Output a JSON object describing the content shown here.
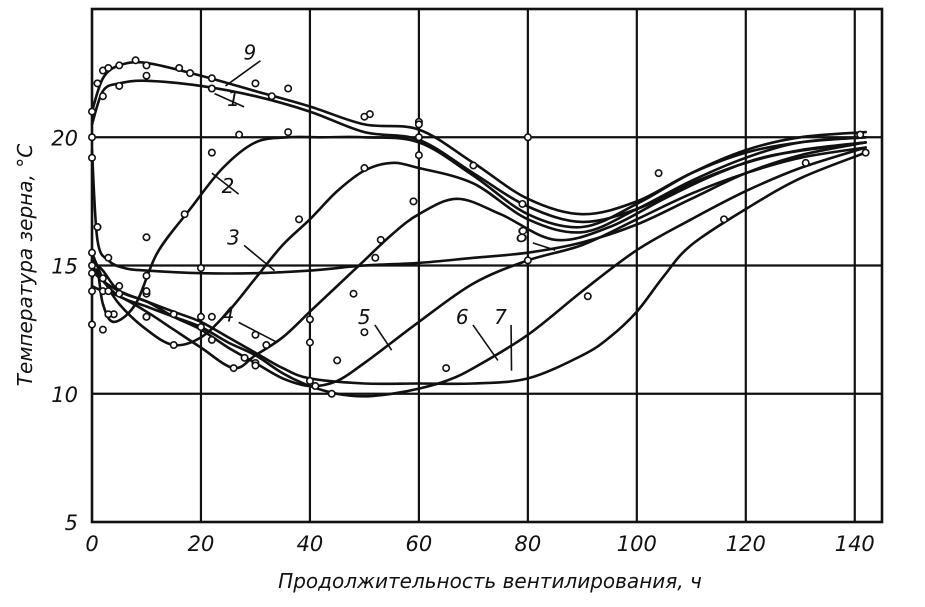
{
  "chart_data": {
    "type": "line",
    "title": "",
    "xlabel": "Продолжительность вентилирования, ч",
    "ylabel": "Температура зерна, °С",
    "xlim": [
      0,
      145
    ],
    "ylim": [
      5,
      25
    ],
    "xticks": [
      0,
      20,
      40,
      60,
      80,
      100,
      120,
      140
    ],
    "yticks": [
      5,
      10,
      15,
      20
    ],
    "grid": true,
    "series": [
      {
        "name": "1",
        "x": [
          0,
          2,
          5,
          10,
          20,
          30,
          40,
          50,
          60,
          70,
          80,
          90,
          100,
          110,
          120,
          130,
          142
        ],
        "y": [
          20.5,
          21.8,
          22.1,
          22.2,
          22.0,
          21.6,
          21.0,
          20.2,
          19.9,
          18.6,
          17.3,
          16.7,
          17.2,
          18.2,
          19.0,
          19.5,
          19.8
        ]
      },
      {
        "name": "2",
        "x": [
          0,
          1,
          2,
          4,
          8,
          12,
          18,
          24,
          30,
          36,
          42,
          50,
          60,
          70,
          80,
          90,
          100,
          110,
          120,
          130,
          142
        ],
        "y": [
          14.5,
          14.8,
          13.5,
          12.8,
          13.5,
          15.5,
          17.2,
          18.8,
          19.8,
          20.0,
          20.0,
          20.0,
          19.8,
          18.5,
          17.0,
          16.5,
          17.4,
          18.6,
          19.5,
          20.0,
          20.2
        ]
      },
      {
        "name": "3",
        "x": [
          0,
          2,
          5,
          10,
          15,
          20,
          25,
          30,
          35,
          40,
          45,
          50,
          55,
          60,
          70,
          80,
          90,
          100,
          110,
          120,
          130,
          142
        ],
        "y": [
          15.5,
          14.5,
          13.5,
          12.5,
          11.9,
          12.2,
          13.2,
          14.5,
          15.8,
          16.8,
          17.9,
          18.7,
          19.0,
          18.8,
          18.2,
          16.8,
          16.3,
          17.2,
          18.3,
          19.2,
          19.8,
          20.0
        ]
      },
      {
        "name": "4",
        "x": [
          0,
          2,
          5,
          10,
          15,
          20,
          26,
          30,
          35,
          40,
          45,
          50,
          55,
          60,
          67,
          75,
          85,
          95,
          105,
          115,
          125,
          142
        ],
        "y": [
          14.2,
          14.0,
          13.8,
          13.2,
          12.5,
          11.8,
          11.0,
          11.5,
          12.2,
          13.2,
          14.2,
          15.2,
          16.2,
          17.0,
          17.6,
          17.0,
          16.0,
          16.5,
          17.6,
          18.6,
          19.3,
          19.8
        ]
      },
      {
        "name": "5",
        "x": [
          0,
          2,
          5,
          10,
          15,
          20,
          25,
          30,
          35,
          40,
          45,
          50,
          55,
          60,
          70,
          80,
          90,
          100,
          110,
          120,
          130,
          142
        ],
        "y": [
          15.2,
          14.8,
          14.0,
          13.6,
          13.0,
          12.5,
          11.8,
          11.2,
          10.6,
          10.3,
          10.5,
          11.2,
          12.0,
          12.8,
          14.3,
          15.2,
          15.8,
          16.8,
          17.8,
          18.6,
          19.2,
          19.6
        ]
      },
      {
        "name": "6",
        "x": [
          0,
          2,
          5,
          10,
          15,
          20,
          25,
          30,
          35,
          40,
          45,
          50,
          55,
          60,
          65,
          70,
          80,
          90,
          100,
          110,
          120,
          130,
          142
        ],
        "y": [
          15.0,
          14.4,
          13.8,
          13.4,
          13.0,
          12.6,
          12.0,
          11.5,
          10.8,
          10.3,
          10.0,
          9.9,
          10.0,
          10.2,
          10.5,
          11.0,
          12.3,
          14.0,
          15.6,
          16.8,
          17.9,
          18.8,
          19.6
        ]
      },
      {
        "name": "7",
        "x": [
          0,
          2,
          5,
          10,
          15,
          20,
          25,
          30,
          35,
          40,
          50,
          60,
          70,
          80,
          90,
          95,
          100,
          105,
          110,
          120,
          130,
          142
        ],
        "y": [
          14.8,
          14.4,
          14.0,
          13.6,
          13.2,
          12.8,
          12.2,
          11.6,
          11.0,
          10.6,
          10.4,
          10.4,
          10.4,
          10.6,
          11.5,
          12.2,
          13.2,
          14.6,
          15.8,
          17.2,
          18.4,
          19.4
        ]
      },
      {
        "name": "8",
        "x": [
          0,
          1,
          3,
          6,
          10,
          20,
          30,
          40,
          50,
          60,
          70,
          80,
          90,
          100,
          110,
          120,
          130,
          142
        ],
        "y": [
          19.5,
          16.0,
          15.2,
          14.9,
          14.8,
          14.7,
          14.7,
          14.8,
          15.0,
          15.1,
          15.3,
          15.5,
          15.9,
          16.6,
          17.6,
          18.6,
          19.3,
          19.8
        ]
      },
      {
        "name": "9",
        "x": [
          0,
          2,
          5,
          10,
          20,
          30,
          40,
          50,
          60,
          70,
          80,
          90,
          100,
          110,
          120,
          130,
          142
        ],
        "y": [
          21.0,
          22.3,
          22.8,
          22.9,
          22.4,
          21.8,
          21.2,
          20.5,
          20.3,
          19.0,
          17.6,
          17.0,
          17.5,
          18.6,
          19.4,
          19.8,
          20.0
        ]
      }
    ],
    "markers": {
      "x": [
        0,
        1,
        2,
        3,
        5,
        8,
        10,
        16,
        22,
        30,
        36,
        51,
        60,
        0,
        2,
        5,
        10,
        18,
        22,
        33,
        50,
        60,
        0,
        1,
        3,
        5,
        10,
        17,
        22,
        27,
        36,
        50,
        60,
        0,
        2,
        4,
        10,
        15,
        20,
        26,
        30,
        38,
        48,
        53,
        59,
        0,
        2,
        5,
        10,
        15,
        20,
        28,
        32,
        40,
        45,
        52,
        0,
        2,
        10,
        22,
        30,
        41,
        44,
        50,
        0,
        3,
        10,
        22,
        40,
        65,
        80,
        91,
        0,
        1,
        3,
        10,
        20,
        30,
        40,
        60,
        70,
        79,
        80,
        104,
        116,
        131,
        141,
        142
      ],
      "y": [
        21.0,
        22.1,
        22.6,
        22.7,
        22.8,
        23.0,
        22.8,
        22.7,
        22.3,
        22.1,
        21.9,
        20.9,
        20.6,
        20.0,
        21.6,
        22.0,
        22.4,
        22.5,
        21.9,
        21.6,
        20.8,
        20.5,
        19.2,
        16.5,
        15.3,
        14.2,
        16.1,
        17.0,
        19.4,
        20.1,
        20.2,
        18.8,
        20.0,
        14.0,
        12.5,
        13.1,
        13.0,
        11.9,
        13.0,
        11.0,
        11.2,
        16.8,
        13.9,
        16.0,
        17.5,
        15.0,
        14.0,
        13.9,
        13.9,
        13.1,
        12.6,
        11.4,
        11.9,
        12.9,
        11.3,
        15.3,
        14.7,
        14.5,
        14.0,
        13.0,
        11.1,
        10.3,
        10.0,
        12.4,
        12.7,
        13.1,
        13.0,
        12.1,
        10.5,
        11.0,
        15.2,
        13.8,
        15.5,
        16.5,
        14.0,
        14.6,
        14.9,
        12.3,
        12.0,
        19.3,
        18.9,
        17.4,
        20.0,
        18.6,
        16.8,
        19.0,
        20.1,
        19.4
      ]
    },
    "curve_labels": [
      "9",
      "1",
      "2",
      "3",
      "4",
      "8",
      "5",
      "6",
      "7"
    ]
  }
}
